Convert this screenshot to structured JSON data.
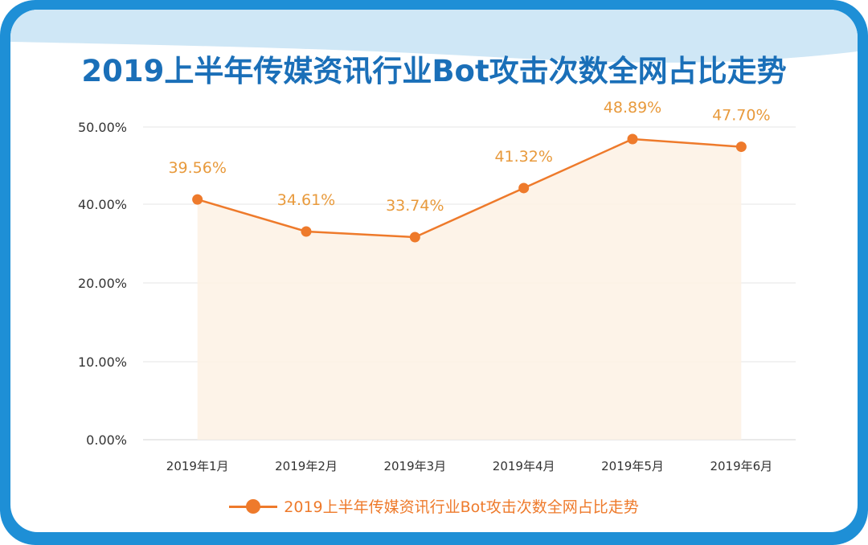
{
  "title": "2019上半年传媒资讯行业Bot攻击次数全网占比走势",
  "chart_data": {
    "type": "line",
    "title": "2019上半年传媒资讯行业Bot攻击次数全网占比走势",
    "categories": [
      "2019年1月",
      "2019年2月",
      "2019年3月",
      "2019年4月",
      "2019年5月",
      "2019年6月"
    ],
    "series": [
      {
        "name": "2019上半年传媒资讯行业Bot攻击次数全网占比走势",
        "values": [
          39.56,
          34.61,
          33.74,
          41.32,
          48.89,
          47.7
        ],
        "labels": [
          "39.56%",
          "34.61%",
          "33.74%",
          "41.32%",
          "48.89%",
          "47.70%"
        ]
      }
    ],
    "yticks": [
      "0.00%",
      "10.00%",
      "20.00%",
      "40.00%",
      "50.00%"
    ],
    "ytick_values": [
      0,
      10,
      20,
      40,
      50
    ],
    "grid": true,
    "area_fill": true,
    "legend": "bottom",
    "colors": {
      "line": "#ee7a2b",
      "area": "#fdf1e4",
      "label": "#e89a3c",
      "grid": "#e6e6e6",
      "title": "#1a6fb8"
    }
  }
}
